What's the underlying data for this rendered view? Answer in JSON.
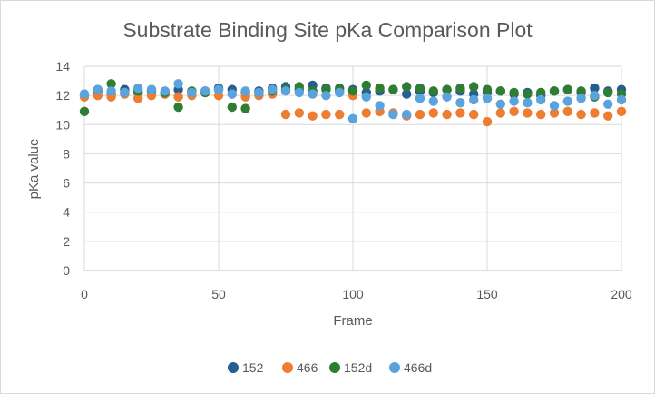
{
  "chart_data": {
    "type": "scatter",
    "title": "Substrate Binding Site pKa Comparison Plot",
    "xlabel": "Frame",
    "ylabel": "pKa value",
    "xlim": [
      0,
      200
    ],
    "ylim": [
      0,
      14
    ],
    "x_ticks": [
      0,
      50,
      100,
      150,
      200
    ],
    "y_ticks": [
      0,
      2,
      4,
      6,
      8,
      10,
      12,
      14
    ],
    "grid": "horizontal major gridlines on y; vertical major gridlines on x",
    "legend_position": "bottom",
    "colors": {
      "152": "#255e91",
      "466": "#ed7d31",
      "152d": "#2e7d32",
      "466d": "#5ba3dc"
    },
    "x": [
      0,
      5,
      10,
      15,
      20,
      25,
      30,
      35,
      40,
      45,
      50,
      55,
      60,
      65,
      70,
      75,
      80,
      85,
      90,
      95,
      100,
      105,
      110,
      115,
      120,
      125,
      130,
      135,
      140,
      145,
      150,
      155,
      160,
      165,
      170,
      175,
      180,
      185,
      190,
      195,
      200
    ],
    "series": [
      {
        "name": "152",
        "values": [
          12.0,
          12.3,
          12.1,
          12.4,
          12.2,
          12.3,
          12.1,
          12.4,
          12.2,
          12.3,
          12.5,
          12.4,
          12.2,
          12.3,
          12.5,
          12.6,
          12.4,
          12.7,
          12.5,
          12.3,
          12.4,
          12.2,
          12.3,
          12.4,
          12.1,
          12.3,
          12.2,
          12.4,
          12.3,
          12.1,
          12.2,
          12.3,
          12.1,
          12.2,
          12.0,
          12.3,
          12.4,
          12.2,
          12.5,
          12.3,
          12.4
        ]
      },
      {
        "name": "466",
        "values": [
          11.9,
          12.0,
          11.9,
          12.1,
          11.8,
          12.0,
          12.1,
          11.9,
          12.0,
          12.2,
          12.0,
          12.1,
          11.9,
          12.0,
          12.1,
          10.7,
          10.8,
          10.6,
          10.7,
          10.7,
          12.0,
          10.8,
          10.9,
          10.8,
          10.6,
          10.7,
          10.8,
          10.7,
          10.8,
          10.7,
          10.2,
          10.8,
          10.9,
          10.8,
          10.7,
          10.8,
          10.9,
          10.7,
          10.8,
          10.6,
          10.9
        ]
      },
      {
        "name": "152d",
        "values": [
          10.9,
          12.4,
          12.8,
          12.2,
          12.3,
          12.4,
          12.2,
          11.2,
          12.3,
          12.2,
          12.4,
          11.2,
          11.1,
          12.2,
          12.3,
          12.4,
          12.6,
          12.3,
          12.4,
          12.5,
          12.3,
          12.7,
          12.5,
          12.4,
          12.6,
          12.5,
          12.3,
          12.4,
          12.5,
          12.6,
          12.4,
          12.3,
          12.2,
          12.1,
          12.2,
          12.3,
          12.4,
          12.3,
          11.9,
          12.2,
          12.1
        ]
      },
      {
        "name": "466d",
        "values": [
          12.1,
          12.4,
          12.3,
          12.2,
          12.5,
          12.4,
          12.3,
          12.8,
          12.2,
          12.3,
          12.4,
          12.1,
          12.3,
          12.2,
          12.4,
          12.3,
          12.2,
          12.1,
          12.0,
          12.2,
          10.4,
          11.9,
          11.3,
          10.7,
          10.7,
          11.8,
          11.6,
          11.9,
          11.5,
          11.7,
          11.8,
          11.4,
          11.6,
          11.5,
          11.7,
          11.3,
          11.6,
          11.8,
          12.0,
          11.4,
          11.7
        ]
      }
    ]
  }
}
